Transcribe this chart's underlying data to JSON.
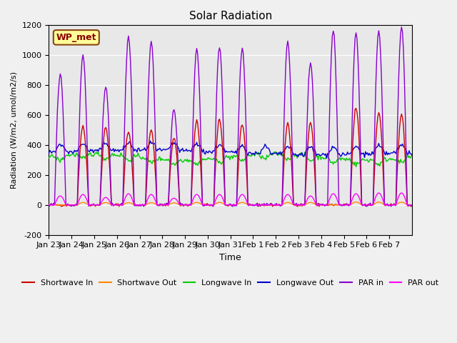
{
  "title": "Solar Radiation",
  "ylabel": "Radiation (W/m2, umol/m2/s)",
  "xlabel": "Time",
  "ylim": [
    -200,
    1200
  ],
  "n_days": 16,
  "xtick_labels": [
    "Jan 23",
    "Jan 24",
    "Jan 25",
    "Jan 26",
    "Jan 27",
    "Jan 28",
    "Jan 29",
    "Jan 30",
    "Jan 31",
    "Feb 1",
    "Feb 2",
    "Feb 3",
    "Feb 4",
    "Feb 5",
    "Feb 6",
    "Feb 7"
  ],
  "ytick_labels": [
    -200,
    0,
    200,
    400,
    600,
    800,
    1000,
    1200
  ],
  "annotation_text": "WP_met",
  "annotation_bg": "#ffff99",
  "annotation_border": "#8B4513",
  "colors": {
    "shortwave_in": "#cc0000",
    "shortwave_out": "#ff8800",
    "longwave_in": "#00cc00",
    "longwave_out": "#0000cc",
    "par_in": "#8800cc",
    "par_out": "#ff00ff"
  },
  "legend_labels": [
    "Shortwave In",
    "Shortwave Out",
    "Longwave In",
    "Longwave Out",
    "PAR in",
    "PAR out"
  ],
  "background_color": "#e8e8e8",
  "grid_color": "#ffffff",
  "sw_in_peaks": [
    0,
    530,
    520,
    490,
    500,
    450,
    560,
    570,
    540,
    0,
    540,
    550,
    0,
    650,
    620,
    600
  ],
  "par_in_peaks": [
    870,
    1000,
    790,
    1120,
    1090,
    640,
    1040,
    1050,
    1050,
    0,
    1090,
    950,
    1160,
    1150,
    1160,
    1190
  ],
  "par_out_peaks": [
    60,
    70,
    50,
    75,
    70,
    45,
    70,
    70,
    70,
    0,
    70,
    60,
    75,
    75,
    80,
    80
  ]
}
